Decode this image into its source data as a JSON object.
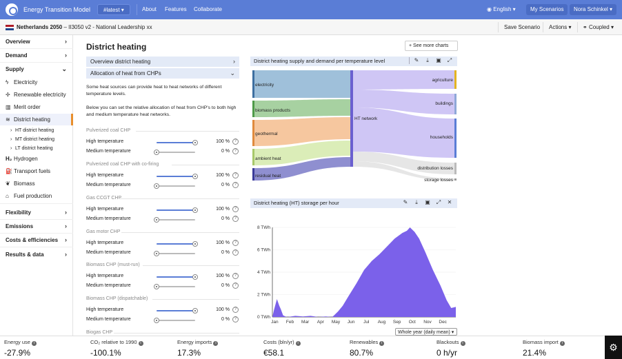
{
  "topbar": {
    "brand": "Energy Transition Model",
    "version": "#latest ▾",
    "nav": [
      "About",
      "Features",
      "Collaborate"
    ],
    "language": "English ▾",
    "my_scenarios": "My Scenarios",
    "user": "Nora Schinkel ▾"
  },
  "scenario": {
    "country": "Netherlands 2050",
    "rest": " – II3050 v2 - National Leadership xx",
    "save": "Save Scenario",
    "actions": "Actions ▾",
    "coupled": "Coupled ▾"
  },
  "sidebar": {
    "overview": "Overview",
    "demand": "Demand",
    "supply": "Supply",
    "electricity": "Electricity",
    "renewable": "Renewable electricity",
    "merit": "Merit order",
    "district": "District heating",
    "ht": "HT district heating",
    "mt": "MT district heating",
    "lt": "LT district heating",
    "hydrogen": "Hydrogen",
    "transport": "Transport fuels",
    "biomass": "Biomass",
    "fuel": "Fuel production",
    "flexibility": "Flexibility",
    "emissions": "Emissions",
    "costs": "Costs & efficiencies",
    "results": "Results & data"
  },
  "main": {
    "title": "District heating",
    "more_charts": "+ See more charts",
    "acc1": "Overview district heating",
    "acc2": "Allocation of heat from CHPs",
    "desc1": "Some heat sources can provide heat to heat networks of different temperature levels.",
    "desc2": "Below you can set the relative allocation of heat from CHP's to both high and medium temperature heat networks.",
    "groups": [
      {
        "name": "Pulverized coal CHP",
        "high": "100 %",
        "medium": "0 %"
      },
      {
        "name": "Pulverized coal CHP with co-firing",
        "high": "100 %",
        "medium": "0 %"
      },
      {
        "name": "Gas CCGT CHP",
        "high": "100 %",
        "medium": "0 %"
      },
      {
        "name": "Gas motor CHP",
        "high": "100 %",
        "medium": "0 %"
      },
      {
        "name": "Biomass CHP (must-run)",
        "high": "100 %",
        "medium": "0 %"
      },
      {
        "name": "Biomass CHP (dispatchable)",
        "high": "100 %",
        "medium": "0 %"
      },
      {
        "name": "Biogas CHP",
        "high": "",
        "medium": ""
      }
    ],
    "high_label": "High temperature",
    "medium_label": "Medium temperature",
    "help": "?"
  },
  "sankey_panel": {
    "title": "District heating supply and demand per temperature level",
    "left": [
      "electricity",
      "biomass products",
      "geothermal",
      "ambient heat",
      "residual heat"
    ],
    "center": "HT network",
    "right": [
      "agriculture",
      "buildings",
      "households",
      "distribution losses",
      "storage losses"
    ]
  },
  "storage_panel": {
    "title": "District heating (HT) storage per hour",
    "period": "Whole year (daily mean) ▾"
  },
  "chart_data": {
    "type": "area",
    "title": "District heating (HT) storage per hour",
    "xlabel": "",
    "ylabel": "",
    "y_unit": "TWh",
    "ylim": [
      0,
      8
    ],
    "yticks": [
      "0 TWh",
      "2 TWh",
      "4 TWh",
      "6 TWh",
      "8 TWh"
    ],
    "xticks": [
      "Jan",
      "Feb",
      "Mar",
      "Apr",
      "May",
      "Jun",
      "Jul",
      "Aug",
      "Sep",
      "Oct",
      "Nov",
      "Dec"
    ],
    "x_month": [
      0,
      0.1,
      0.3,
      0.45,
      0.55,
      0.7,
      0.85,
      1.0,
      1.5,
      2.0,
      2.5,
      3.0,
      3.5,
      3.9,
      4.0,
      4.3,
      4.6,
      5.0,
      5.5,
      6.0,
      6.5,
      7.0,
      7.5,
      8.0,
      8.5,
      8.8,
      9.0,
      9.3,
      9.6,
      10.0,
      10.5,
      11.0,
      11.4,
      11.7,
      12.0
    ],
    "values": [
      0,
      0.6,
      1.6,
      1.0,
      0.7,
      0.15,
      0.05,
      0,
      0.1,
      0.05,
      0.1,
      0,
      0.05,
      0,
      0.1,
      0.5,
      1.0,
      1.9,
      3.0,
      4.2,
      5.0,
      5.6,
      6.3,
      7.0,
      7.5,
      7.7,
      8.0,
      7.6,
      7.0,
      5.8,
      4.2,
      2.8,
      1.5,
      0.8,
      0.9
    ],
    "series": [
      {
        "name": "",
        "color": "#7b61ea"
      }
    ]
  },
  "kpis": [
    {
      "label": "Energy use",
      "value": "-27.9%"
    },
    {
      "label": "CO₂ relative to 1990",
      "value": "-100.1%"
    },
    {
      "label": "Energy imports",
      "value": "17.3%"
    },
    {
      "label": "Costs (bln/yr)",
      "value": "€58.1"
    },
    {
      "label": "Renewables",
      "value": "80.7%"
    },
    {
      "label": "Blackouts",
      "value": "0 h/yr"
    },
    {
      "label": "Biomass import",
      "value": "21.4%"
    }
  ],
  "colors": {
    "accent": "#5a7dd6",
    "active": "#e88e2c",
    "storage": "#7b61ea"
  }
}
